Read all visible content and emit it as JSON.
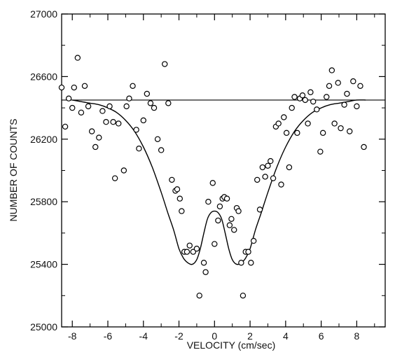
{
  "chart_data": {
    "type": "scatter",
    "title": "",
    "xlabel": "VELOCITY (cm/sec)",
    "ylabel": "NUMBER OF COUNTS",
    "xlim": [
      -8.6,
      9.6
    ],
    "ylim": [
      25000,
      27000
    ],
    "xticks": [
      "-8",
      "-6",
      "-4",
      "-2",
      "0",
      "2",
      "4",
      "6",
      "8"
    ],
    "yticks": [
      "25000",
      "25400",
      "25800",
      "26200",
      "26600",
      "27000"
    ],
    "grid": false,
    "baseline": 26450,
    "series": [
      {
        "type": "scatter",
        "marker": "open-circle",
        "points": [
          [
            -8.6,
            26530
          ],
          [
            -8.4,
            26280
          ],
          [
            -8.2,
            26460
          ],
          [
            -8.0,
            26400
          ],
          [
            -7.9,
            26530
          ],
          [
            -7.7,
            26720
          ],
          [
            -7.5,
            26370
          ],
          [
            -7.3,
            26540
          ],
          [
            -7.1,
            26410
          ],
          [
            -6.9,
            26250
          ],
          [
            -6.7,
            26150
          ],
          [
            -6.5,
            26210
          ],
          [
            -6.3,
            26380
          ],
          [
            -6.1,
            26310
          ],
          [
            -5.9,
            26410
          ],
          [
            -5.7,
            26310
          ],
          [
            -5.6,
            25950
          ],
          [
            -5.4,
            26300
          ],
          [
            -5.1,
            26000
          ],
          [
            -4.95,
            26410
          ],
          [
            -4.8,
            26460
          ],
          [
            -4.6,
            26540
          ],
          [
            -4.4,
            26260
          ],
          [
            -4.25,
            26140
          ],
          [
            -4.0,
            26320
          ],
          [
            -3.8,
            26490
          ],
          [
            -3.6,
            26430
          ],
          [
            -3.4,
            26400
          ],
          [
            -3.2,
            26200
          ],
          [
            -3.0,
            26130
          ],
          [
            -2.8,
            26680
          ],
          [
            -2.6,
            26430
          ],
          [
            -2.4,
            25940
          ],
          [
            -2.2,
            25870
          ],
          [
            -2.1,
            25880
          ],
          [
            -1.95,
            25820
          ],
          [
            -1.85,
            25740
          ],
          [
            -1.7,
            25480
          ],
          [
            -1.55,
            25480
          ],
          [
            -1.4,
            25520
          ],
          [
            -1.2,
            25480
          ],
          [
            -1.0,
            25500
          ],
          [
            -0.85,
            25200
          ],
          [
            -0.6,
            25410
          ],
          [
            -0.5,
            25350
          ],
          [
            -0.35,
            25800
          ],
          [
            -0.1,
            25920
          ],
          [
            0.0,
            25530
          ],
          [
            0.2,
            25680
          ],
          [
            0.3,
            25770
          ],
          [
            0.45,
            25820
          ],
          [
            0.55,
            25830
          ],
          [
            0.7,
            25820
          ],
          [
            0.85,
            25650
          ],
          [
            0.95,
            25690
          ],
          [
            1.1,
            25620
          ],
          [
            1.25,
            25760
          ],
          [
            1.35,
            25740
          ],
          [
            1.5,
            25410
          ],
          [
            1.6,
            25200
          ],
          [
            1.75,
            25480
          ],
          [
            1.9,
            25480
          ],
          [
            2.05,
            25410
          ],
          [
            2.2,
            25550
          ],
          [
            2.4,
            25940
          ],
          [
            2.55,
            25750
          ],
          [
            2.7,
            26020
          ],
          [
            2.85,
            25960
          ],
          [
            3.0,
            26030
          ],
          [
            3.15,
            26060
          ],
          [
            3.3,
            25950
          ],
          [
            3.45,
            26280
          ],
          [
            3.6,
            26300
          ],
          [
            3.75,
            25910
          ],
          [
            3.9,
            26340
          ],
          [
            4.05,
            26240
          ],
          [
            4.2,
            26020
          ],
          [
            4.35,
            26400
          ],
          [
            4.5,
            26470
          ],
          [
            4.65,
            26240
          ],
          [
            4.8,
            26460
          ],
          [
            4.95,
            26480
          ],
          [
            5.1,
            26450
          ],
          [
            5.25,
            26300
          ],
          [
            5.4,
            26500
          ],
          [
            5.55,
            26440
          ],
          [
            5.75,
            26390
          ],
          [
            5.95,
            26120
          ],
          [
            6.1,
            26240
          ],
          [
            6.3,
            26470
          ],
          [
            6.45,
            26540
          ],
          [
            6.6,
            26640
          ],
          [
            6.75,
            26300
          ],
          [
            6.95,
            26560
          ],
          [
            7.1,
            26270
          ],
          [
            7.3,
            26420
          ],
          [
            7.45,
            26490
          ],
          [
            7.6,
            26250
          ],
          [
            7.8,
            26570
          ],
          [
            8.0,
            26410
          ],
          [
            8.2,
            26540
          ],
          [
            8.4,
            26150
          ]
        ]
      },
      {
        "type": "line",
        "points": [
          [
            -8.0,
            26450
          ],
          [
            -7.5,
            26440
          ],
          [
            -7.0,
            26430
          ],
          [
            -6.5,
            26420
          ],
          [
            -6.0,
            26400
          ],
          [
            -5.5,
            26370
          ],
          [
            -5.0,
            26320
          ],
          [
            -4.5,
            26250
          ],
          [
            -4.0,
            26150
          ],
          [
            -3.5,
            26020
          ],
          [
            -3.0,
            25860
          ],
          [
            -2.6,
            25720
          ],
          [
            -2.3,
            25620
          ],
          [
            -2.0,
            25500
          ],
          [
            -1.75,
            25440
          ],
          [
            -1.5,
            25410
          ],
          [
            -1.25,
            25400
          ],
          [
            -1.0,
            25430
          ],
          [
            -0.8,
            25500
          ],
          [
            -0.6,
            25600
          ],
          [
            -0.4,
            25690
          ],
          [
            -0.2,
            25730
          ],
          [
            0.0,
            25740
          ],
          [
            0.2,
            25730
          ],
          [
            0.4,
            25690
          ],
          [
            0.6,
            25600
          ],
          [
            0.8,
            25500
          ],
          [
            1.0,
            25430
          ],
          [
            1.25,
            25400
          ],
          [
            1.5,
            25410
          ],
          [
            1.75,
            25440
          ],
          [
            2.0,
            25500
          ],
          [
            2.3,
            25620
          ],
          [
            2.6,
            25720
          ],
          [
            3.0,
            25860
          ],
          [
            3.5,
            26020
          ],
          [
            4.0,
            26150
          ],
          [
            4.5,
            26250
          ],
          [
            5.0,
            26320
          ],
          [
            5.5,
            26370
          ],
          [
            6.0,
            26400
          ],
          [
            6.5,
            26420
          ],
          [
            7.0,
            26430
          ],
          [
            7.5,
            26440
          ],
          [
            8.0,
            26450
          ],
          [
            8.5,
            26450
          ]
        ]
      }
    ]
  }
}
